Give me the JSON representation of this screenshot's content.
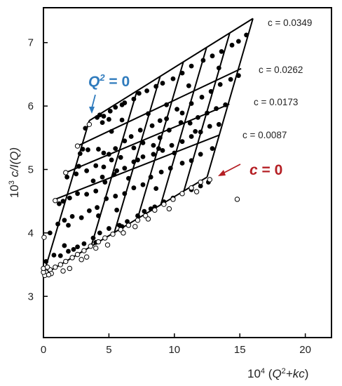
{
  "chart_data": {
    "type": "scatter",
    "title": "",
    "xlabel": {
      "prefix": "10",
      "exp": "4",
      "open": " (",
      "q": "Q",
      "qexp": "2",
      "rest": "+kc",
      "close": ")"
    },
    "ylabel": {
      "prefix": "10",
      "exp": "3",
      "rest": " c/I(Q)"
    },
    "xlim": [
      0,
      22
    ],
    "ylim": [
      2.35,
      7.55
    ],
    "xticks": [
      0,
      5,
      10,
      15,
      20
    ],
    "yticks": [
      3,
      4,
      5,
      6,
      7
    ],
    "xtick_labels": [
      "0",
      "5",
      "10",
      "15",
      "20"
    ],
    "ytick_labels": [
      "3",
      "4",
      "5",
      "6",
      "7"
    ],
    "grid": false,
    "k": 100,
    "q_values": [
      0,
      3.5,
      5.2,
      6.9,
      8.6,
      10.3,
      12.0
    ],
    "concentration_lines": [
      {
        "label": "c = 0.0349",
        "c": 0.0349,
        "x": [
          3.5,
          16.0
        ],
        "y": [
          5.77,
          7.38
        ]
      },
      {
        "label": "c = 0.0262",
        "c": 0.0262,
        "x": [
          2.6,
          15.1
        ],
        "y": [
          5.37,
          6.59
        ]
      },
      {
        "label": "c = 0.0173",
        "c": 0.0173,
        "x": [
          1.7,
          14.2
        ],
        "y": [
          4.95,
          6.03
        ]
      },
      {
        "label": "c = 0.0087",
        "c": 0.0087,
        "x": [
          0.9,
          13.4
        ],
        "y": [
          4.53,
          5.54
        ]
      },
      {
        "label": "c = 0",
        "c": 0,
        "x": [
          0,
          12.5
        ],
        "y": [
          3.34,
          4.88
        ]
      }
    ],
    "extrapolation_q0": {
      "label": "Q2 = 0",
      "x": [
        0,
        3.5
      ],
      "y": [
        3.34,
        5.77
      ]
    },
    "annotations": {
      "q0": {
        "main": "Q",
        "exp": "2",
        "rest": " = 0",
        "color": "#2f7bbd"
      },
      "c0": {
        "prefix": "c",
        "rest": " = 0",
        "color": "#b51f24"
      }
    },
    "measured_points": [
      [
        3.2,
        5.65
      ],
      [
        4.3,
        5.86
      ],
      [
        4.6,
        5.84
      ],
      [
        4.1,
        5.82
      ],
      [
        5.1,
        5.92
      ],
      [
        5.5,
        5.98
      ],
      [
        6.2,
        6.05
      ],
      [
        6.9,
        6.11
      ],
      [
        7.3,
        6.2
      ],
      [
        7.9,
        6.24
      ],
      [
        8.6,
        6.31
      ],
      [
        9.1,
        6.36
      ],
      [
        9.9,
        6.43
      ],
      [
        10.6,
        6.52
      ],
      [
        11.3,
        6.63
      ],
      [
        12.2,
        6.72
      ],
      [
        12.9,
        6.79
      ],
      [
        13.6,
        6.86
      ],
      [
        14.4,
        6.96
      ],
      [
        14.9,
        7.02
      ],
      [
        15.5,
        7.12
      ],
      [
        4.5,
        5.74
      ],
      [
        5.0,
        5.79
      ],
      [
        6.0,
        6.02
      ],
      [
        2.8,
        5.25
      ],
      [
        3.4,
        5.31
      ],
      [
        4.2,
        5.32
      ],
      [
        4.6,
        5.26
      ],
      [
        5.0,
        5.24
      ],
      [
        5.5,
        5.33
      ],
      [
        6.2,
        5.45
      ],
      [
        6.7,
        5.52
      ],
      [
        7.4,
        5.62
      ],
      [
        8.3,
        5.69
      ],
      [
        8.9,
        5.77
      ],
      [
        9.4,
        5.8
      ],
      [
        10.2,
        5.95
      ],
      [
        10.6,
        5.89
      ],
      [
        11.3,
        6.04
      ],
      [
        12.1,
        6.14
      ],
      [
        12.8,
        6.23
      ],
      [
        13.5,
        6.34
      ],
      [
        14.3,
        6.42
      ],
      [
        14.9,
        6.48
      ],
      [
        3.0,
        5.32
      ],
      [
        5.2,
        5.6
      ],
      [
        6.0,
        5.78
      ],
      [
        8.0,
        5.88
      ],
      [
        9.4,
        6.02
      ],
      [
        11.1,
        6.32
      ],
      [
        13.4,
        6.6
      ],
      [
        1.8,
        4.88
      ],
      [
        2.5,
        4.93
      ],
      [
        3.3,
        4.98
      ],
      [
        4.0,
        5.06
      ],
      [
        4.6,
        5.04
      ],
      [
        5.2,
        5.15
      ],
      [
        5.9,
        5.19
      ],
      [
        6.9,
        5.34
      ],
      [
        7.6,
        5.42
      ],
      [
        8.4,
        5.38
      ],
      [
        8.9,
        5.5
      ],
      [
        9.6,
        5.62
      ],
      [
        10.5,
        5.74
      ],
      [
        11.2,
        5.73
      ],
      [
        11.8,
        5.82
      ],
      [
        12.5,
        5.89
      ],
      [
        13.2,
        5.96
      ],
      [
        13.9,
        6.02
      ],
      [
        2.7,
        5.05
      ],
      [
        3.8,
        4.82
      ],
      [
        5.6,
        4.98
      ],
      [
        7.2,
        5.15
      ],
      [
        8.8,
        5.33
      ],
      [
        11.6,
        5.6
      ],
      [
        1.5,
        4.5
      ],
      [
        2.0,
        4.55
      ],
      [
        2.6,
        4.62
      ],
      [
        3.3,
        4.61
      ],
      [
        4.0,
        4.66
      ],
      [
        4.7,
        4.8
      ],
      [
        5.4,
        4.92
      ],
      [
        6.2,
        5.02
      ],
      [
        6.9,
        5.12
      ],
      [
        7.6,
        5.2
      ],
      [
        8.4,
        5.24
      ],
      [
        9.1,
        5.3
      ],
      [
        9.8,
        5.38
      ],
      [
        10.6,
        5.44
      ],
      [
        11.3,
        5.52
      ],
      [
        12.0,
        5.59
      ],
      [
        12.7,
        5.68
      ],
      [
        13.4,
        5.71
      ],
      [
        1.2,
        4.46
      ],
      [
        4.5,
        4.88
      ],
      [
        6.5,
        4.86
      ],
      [
        10.0,
        5.26
      ],
      [
        0.5,
        4.0
      ],
      [
        1.1,
        4.14
      ],
      [
        1.6,
        4.2
      ],
      [
        2.2,
        4.26
      ],
      [
        2.9,
        4.24
      ],
      [
        3.5,
        4.35
      ],
      [
        4.1,
        4.4
      ],
      [
        4.8,
        4.54
      ],
      [
        5.5,
        4.58
      ],
      [
        6.2,
        4.62
      ],
      [
        6.9,
        4.71
      ],
      [
        7.6,
        4.76
      ],
      [
        8.2,
        4.88
      ],
      [
        9.0,
        4.96
      ],
      [
        9.7,
        5.02
      ],
      [
        10.6,
        5.1
      ],
      [
        11.3,
        5.14
      ],
      [
        12.0,
        5.24
      ],
      [
        12.9,
        5.33
      ],
      [
        1.9,
        4.12
      ],
      [
        4.2,
        4.27
      ],
      [
        5.6,
        4.36
      ],
      [
        8.6,
        4.7
      ],
      [
        0.2,
        3.55
      ],
      [
        0.8,
        3.65
      ],
      [
        1.3,
        3.64
      ],
      [
        1.9,
        3.71
      ],
      [
        2.6,
        3.78
      ],
      [
        3.1,
        3.83
      ],
      [
        3.8,
        3.92
      ],
      [
        4.3,
        4.0
      ],
      [
        5.0,
        4.07
      ],
      [
        5.8,
        4.12
      ],
      [
        6.4,
        4.18
      ],
      [
        7.2,
        4.27
      ],
      [
        7.7,
        4.34
      ],
      [
        8.5,
        4.41
      ],
      [
        9.2,
        4.49
      ],
      [
        9.9,
        4.55
      ],
      [
        10.6,
        4.62
      ],
      [
        11.3,
        4.68
      ],
      [
        12.0,
        4.74
      ],
      [
        12.6,
        4.8
      ],
      [
        1.6,
        3.8
      ],
      [
        2.3,
        3.74
      ],
      [
        4.0,
        3.85
      ],
      [
        6.0,
        4.1
      ],
      [
        8.2,
        4.38
      ]
    ],
    "measured_c0_points": [
      [
        0.2,
        3.38
      ],
      [
        0.5,
        3.42
      ],
      [
        0.9,
        3.46
      ],
      [
        1.3,
        3.5
      ],
      [
        1.7,
        3.55
      ],
      [
        2.2,
        3.61
      ],
      [
        2.6,
        3.66
      ],
      [
        3.1,
        3.72
      ],
      [
        3.6,
        3.79
      ],
      [
        4.2,
        3.86
      ],
      [
        4.7,
        3.92
      ],
      [
        5.3,
        3.98
      ],
      [
        5.9,
        4.05
      ],
      [
        6.5,
        4.12
      ],
      [
        7.2,
        4.2
      ],
      [
        7.8,
        4.27
      ],
      [
        8.5,
        4.36
      ],
      [
        9.2,
        4.45
      ],
      [
        9.9,
        4.53
      ],
      [
        10.6,
        4.62
      ],
      [
        11.3,
        4.71
      ],
      [
        12.0,
        4.8
      ],
      [
        0.1,
        3.33
      ],
      [
        0.6,
        3.36
      ],
      [
        1.5,
        3.4
      ],
      [
        2.0,
        3.44
      ],
      [
        2.9,
        3.58
      ],
      [
        3.3,
        3.62
      ],
      [
        4.0,
        3.76
      ],
      [
        4.9,
        3.81
      ],
      [
        6.1,
        4.0
      ],
      [
        7.0,
        4.1
      ],
      [
        8.0,
        4.22
      ],
      [
        9.6,
        4.38
      ],
      [
        12.7,
        4.84
      ],
      [
        11.7,
        4.65
      ],
      [
        14.8,
        4.53
      ]
    ],
    "extrapolated_q0_points": [
      [
        0.0,
        3.38
      ],
      [
        0.0,
        3.44
      ],
      [
        0.05,
        3.93
      ],
      [
        0.9,
        4.51
      ],
      [
        1.7,
        4.95
      ],
      [
        2.6,
        5.37
      ],
      [
        3.5,
        5.71
      ],
      [
        0.4,
        3.34
      ],
      [
        0.3,
        3.46
      ]
    ]
  }
}
